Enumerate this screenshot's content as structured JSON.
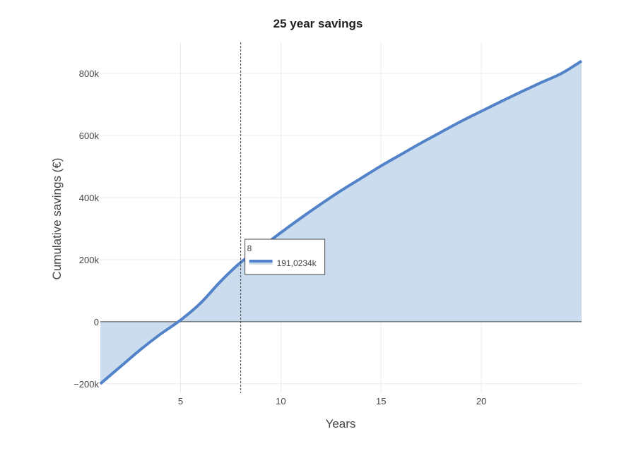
{
  "chart_data": {
    "type": "area",
    "title": "25 year savings",
    "xlabel": "Years",
    "ylabel": "Cumulative savings (€)",
    "xlim": [
      1,
      25
    ],
    "ylim": [
      -230000,
      900000
    ],
    "x_ticks": [
      5,
      10,
      15,
      20
    ],
    "x_tick_labels": [
      "5",
      "10",
      "15",
      "20"
    ],
    "y_ticks": [
      -200000,
      0,
      200000,
      400000,
      600000,
      800000
    ],
    "y_tick_labels": [
      "−200k",
      "0",
      "200k",
      "400k",
      "600k",
      "800k"
    ],
    "grid": true,
    "zero_line": true,
    "colors": {
      "line": "#5283c8",
      "fill": "#cbdcee",
      "grid": "#ebebeb",
      "zero_line": "#444444"
    },
    "series": [
      {
        "x": [
          1,
          2,
          3,
          4,
          5,
          6,
          7,
          8,
          9,
          10,
          11,
          12,
          13,
          14,
          15,
          16,
          17,
          18,
          19,
          20,
          21,
          22,
          23,
          24,
          25
        ],
        "values": [
          -200000,
          -145000,
          -90000,
          -40000,
          5000,
          60000,
          130000,
          191023,
          238000,
          287000,
          334000,
          379000,
          422000,
          462000,
          502000,
          539000,
          576000,
          611000,
          646000,
          678000,
          710000,
          741000,
          771000,
          800000,
          840000
        ]
      }
    ],
    "hover": {
      "x": 8,
      "x_label": "8",
      "value_label": "191,0234k"
    }
  }
}
